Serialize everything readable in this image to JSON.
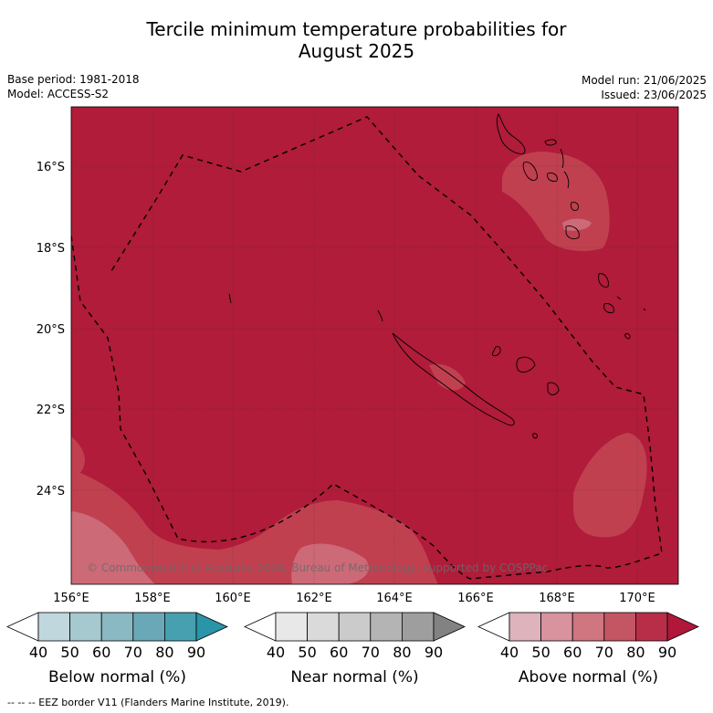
{
  "title_line1": "Tercile minimum temperature probabilities for",
  "title_line2": "August 2025",
  "base_period": "Base period: 1981-2018",
  "model": "Model: ACCESS-S2",
  "model_run": "Model run: 21/06/2025",
  "issued": "Issued: 23/06/2025",
  "copyright": "© Commonwealth of Australia 2025, Bureau of Meteorology, supported by COSPPac",
  "lon_labels": [
    "156°E",
    "158°E",
    "160°E",
    "162°E",
    "164°E",
    "166°E",
    "168°E",
    "170°E"
  ],
  "lat_labels": [
    "16°S",
    "18°S",
    "20°S",
    "22°S",
    "24°S"
  ],
  "colorbars": [
    {
      "title": "Below normal (%)",
      "ticks": [
        "40",
        "50",
        "60",
        "70",
        "80",
        "90"
      ],
      "colors": [
        "#c0d7de",
        "#a6c9d0",
        "#8ab8c3",
        "#6aa8b7",
        "#47a0b0"
      ],
      "extend_color": "#2a94a8"
    },
    {
      "title": "Near normal (%)",
      "ticks": [
        "40",
        "50",
        "60",
        "70",
        "80",
        "90"
      ],
      "colors": [
        "#e8e8e8",
        "#dadada",
        "#cbcbcb",
        "#b4b4b4",
        "#9e9e9e"
      ],
      "extend_color": "#828282"
    },
    {
      "title": "Above normal (%)",
      "ticks": [
        "40",
        "50",
        "60",
        "70",
        "80",
        "90"
      ],
      "colors": [
        "#dfb3bb",
        "#d9939e",
        "#cf7680",
        "#c45563",
        "#b82e48"
      ],
      "extend_color": "#b0173a"
    }
  ],
  "map_colors": {
    "ocean_dominant": "#b01c39",
    "lighter_patch": "#c0404f",
    "lightest_patch": "#cc6a77"
  },
  "legend_footnote": "-- -- -- EEZ border V11 (Flanders Marine Institute, 2019)."
}
